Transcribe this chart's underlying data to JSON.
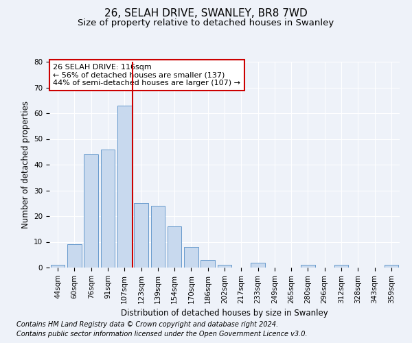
{
  "title": "26, SELAH DRIVE, SWANLEY, BR8 7WD",
  "subtitle": "Size of property relative to detached houses in Swanley",
  "xlabel": "Distribution of detached houses by size in Swanley",
  "ylabel": "Number of detached properties",
  "categories": [
    "44sqm",
    "60sqm",
    "76sqm",
    "91sqm",
    "107sqm",
    "123sqm",
    "139sqm",
    "154sqm",
    "170sqm",
    "186sqm",
    "202sqm",
    "217sqm",
    "233sqm",
    "249sqm",
    "265sqm",
    "280sqm",
    "296sqm",
    "312sqm",
    "328sqm",
    "343sqm",
    "359sqm"
  ],
  "values": [
    1,
    9,
    44,
    46,
    63,
    25,
    24,
    16,
    8,
    3,
    1,
    0,
    2,
    0,
    0,
    1,
    0,
    1,
    0,
    0,
    1
  ],
  "bar_color": "#c8d9ee",
  "bar_edge_color": "#6699cc",
  "ylim": [
    0,
    80
  ],
  "yticks": [
    0,
    10,
    20,
    30,
    40,
    50,
    60,
    70,
    80
  ],
  "vline_x_index": 4.5,
  "vline_color": "#cc0000",
  "annotation_text": "26 SELAH DRIVE: 116sqm\n← 56% of detached houses are smaller (137)\n44% of semi-detached houses are larger (107) →",
  "annotation_box_color": "#ffffff",
  "annotation_box_edge": "#cc0000",
  "footer_line1": "Contains HM Land Registry data © Crown copyright and database right 2024.",
  "footer_line2": "Contains public sector information licensed under the Open Government Licence v3.0.",
  "background_color": "#eef2f9",
  "grid_color": "#ffffff",
  "title_fontsize": 11,
  "subtitle_fontsize": 9.5,
  "axis_label_fontsize": 8.5,
  "tick_fontsize": 7.5,
  "annotation_fontsize": 8,
  "footer_fontsize": 7
}
